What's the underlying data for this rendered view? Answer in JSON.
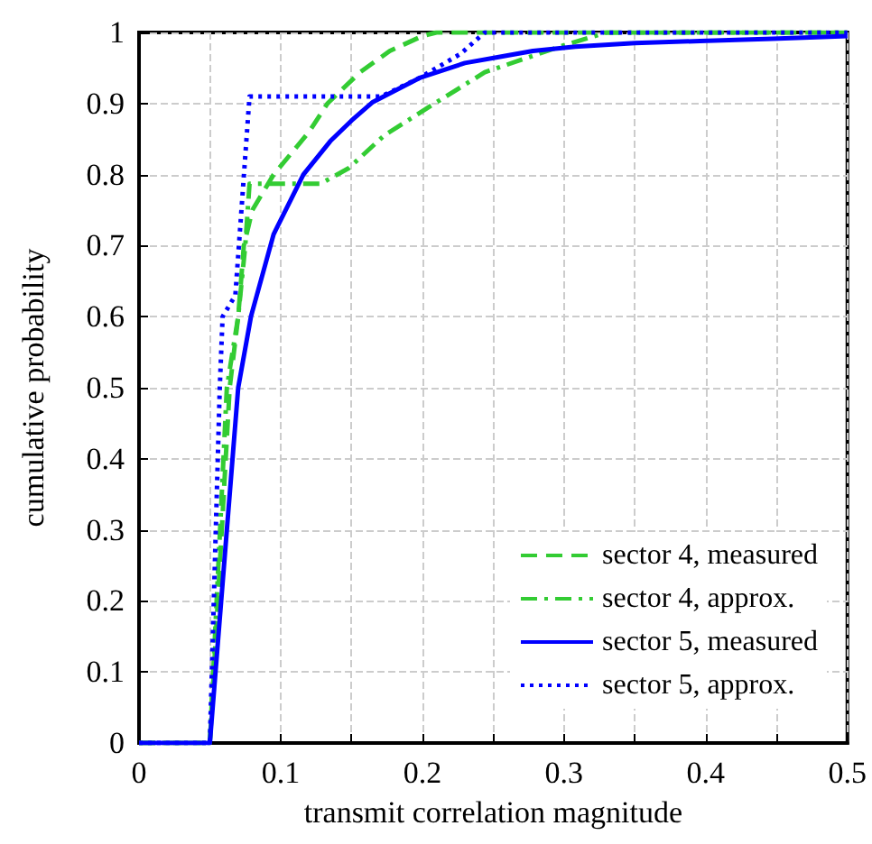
{
  "chart_data": {
    "type": "line",
    "xlabel": "transmit correlation magnitude",
    "ylabel": "cumulative probability",
    "xlim": [
      0,
      0.5
    ],
    "ylim": [
      0,
      1
    ],
    "xticks": [
      0,
      {
        "value": 0.05,
        "label": null
      },
      0.1,
      {
        "value": 0.15,
        "label": null
      },
      0.2,
      {
        "value": 0.25,
        "label": null
      },
      0.3,
      {
        "value": 0.35,
        "label": null
      },
      0.4,
      {
        "value": 0.45,
        "label": null
      },
      0.5
    ],
    "yticks": [
      0,
      0.1,
      0.2,
      0.3,
      0.4,
      0.5,
      0.6,
      0.7,
      0.8,
      0.9,
      1
    ],
    "grid": true,
    "legend": "bottom right",
    "marker": "none",
    "series": [
      {
        "name": "sector 4, measured",
        "color": "#33cc33",
        "line_style": "dashed",
        "x": [
          0,
          0.05,
          0.064,
          0.07,
          0.074,
          0.08,
          0.095,
          0.12,
          0.133,
          0.156,
          0.177,
          0.2,
          0.21,
          0.5
        ],
        "values": [
          0,
          0,
          0.5,
          0.6,
          0.7,
          0.75,
          0.8,
          0.86,
          0.9,
          0.944,
          0.974,
          0.995,
          1,
          1
        ]
      },
      {
        "name": "sector 4, approx.",
        "color": "#33cc33",
        "line_style": "dashdot",
        "x": [
          0,
          0.05,
          0.062,
          0.07,
          0.075,
          0.078,
          0.128,
          0.148,
          0.173,
          0.207,
          0.244,
          0.3,
          0.33,
          0.5
        ],
        "values": [
          0,
          0,
          0.5,
          0.6,
          0.7,
          0.787,
          0.787,
          0.809,
          0.855,
          0.898,
          0.944,
          0.982,
          1,
          1
        ]
      },
      {
        "name": "sector 5, measured",
        "color": "#0000ff",
        "line_style": "solid",
        "x": [
          0,
          0.05,
          0.07,
          0.079,
          0.095,
          0.116,
          0.135,
          0.15,
          0.165,
          0.198,
          0.23,
          0.253,
          0.278,
          0.308,
          0.35,
          0.396,
          0.447,
          0.5
        ],
        "values": [
          0,
          0,
          0.5,
          0.6,
          0.716,
          0.8,
          0.847,
          0.876,
          0.902,
          0.936,
          0.957,
          0.965,
          0.974,
          0.98,
          0.985,
          0.988,
          0.991,
          0.995
        ]
      },
      {
        "name": "sector 5, approx.",
        "color": "#0000ff",
        "line_style": "dotted",
        "x": [
          0,
          0.05,
          0.057,
          0.059,
          0.068,
          0.078,
          0.171,
          0.198,
          0.227,
          0.244,
          0.5
        ],
        "values": [
          0,
          0,
          0.5,
          0.6,
          0.63,
          0.91,
          0.91,
          0.936,
          0.97,
          1,
          1
        ]
      }
    ]
  }
}
